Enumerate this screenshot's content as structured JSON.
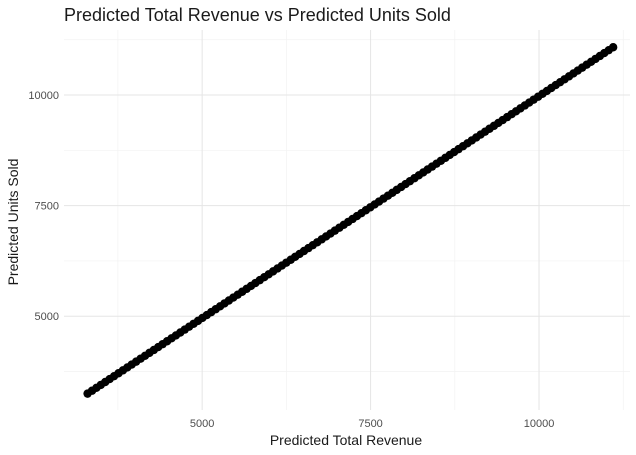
{
  "chart_data": {
    "type": "scatter",
    "title": "Predicted Total Revenue vs Predicted Units Sold",
    "xlabel": "Predicted Total Revenue",
    "ylabel": "Predicted Units Sold",
    "xlim": [
      2950,
      11350
    ],
    "ylim": [
      2880,
      11470
    ],
    "x_ticks": [
      5000,
      7500,
      10000
    ],
    "y_ticks": [
      5000,
      7500,
      10000
    ],
    "x_tick_labels": [
      "5000",
      "7500",
      "10000"
    ],
    "y_tick_labels": [
      "5000",
      "7500",
      "10000"
    ],
    "grid": true,
    "legend": "none",
    "point_color": "#000000",
    "series": [
      {
        "x_start": 3300,
        "x_end": 11100,
        "y_start": 3250,
        "y_end": 11080,
        "n_points": 120
      }
    ]
  }
}
